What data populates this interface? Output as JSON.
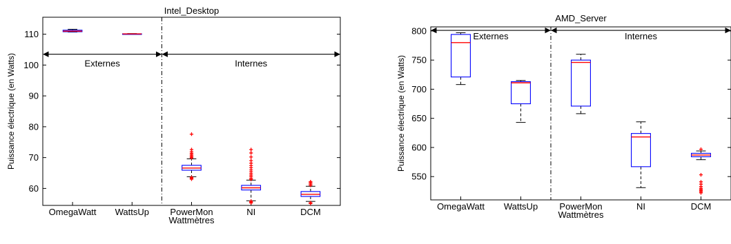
{
  "chart_data": [
    {
      "type": "box",
      "title": "Intel_Desktop",
      "xlabel": "",
      "x_sublabel": "Wattmètres",
      "ylabel": "Puissance électrique (en Watts)",
      "ylim": [
        54.5,
        115.5
      ],
      "yticks": [
        60,
        70,
        80,
        90,
        100,
        110
      ],
      "categories": [
        "OmegaWatt",
        "WattsUp",
        "PowerMon",
        "NI",
        "DCM"
      ],
      "boxes": [
        {
          "label": "OmegaWatt",
          "whisker_low": 110.7,
          "q1": 110.8,
          "median": 111.0,
          "q3": 111.3,
          "whisker_high": 111.6,
          "outliers": []
        },
        {
          "label": "WattsUp",
          "whisker_low": 110.0,
          "q1": 110.0,
          "median": 110.1,
          "q3": 110.15,
          "whisker_high": 110.2,
          "outliers": []
        },
        {
          "label": "PowerMon",
          "whisker_low": 63.8,
          "q1": 65.9,
          "median": 66.6,
          "q3": 67.5,
          "whisker_high": 69.6,
          "outliers": [
            63.0,
            63.3,
            63.6,
            69.9,
            70.2,
            70.6,
            71.0,
            71.4,
            71.9,
            72.6,
            77.6
          ]
        },
        {
          "label": "NI",
          "whisker_low": 56.0,
          "q1": 59.5,
          "median": 60.2,
          "q3": 61.0,
          "whisker_high": 62.7,
          "outliers": [
            55.3,
            55.6,
            55.9,
            62.9,
            63.3,
            63.8,
            64.3,
            64.8,
            65.4,
            66.0,
            66.7,
            67.4,
            68.2,
            69.0,
            70.2,
            71.5,
            72.6
          ]
        },
        {
          "label": "DCM",
          "whisker_low": 55.8,
          "q1": 57.4,
          "median": 58.1,
          "q3": 59.0,
          "whisker_high": 60.7,
          "outliers": [
            55.1,
            55.4,
            61.0,
            61.4,
            61.8,
            62.2
          ]
        }
      ],
      "separator_after": 2,
      "annotations": [
        {
          "text": "Externes",
          "y": 103.5,
          "from": "left",
          "to": "separator"
        },
        {
          "text": "Internes",
          "y": 103.5,
          "from": "separator",
          "to": "right"
        }
      ],
      "grid": false,
      "colors": {
        "box": "#0000ff",
        "median": "#ff0000",
        "outlier": "#ff0000",
        "whisker": "#000000"
      }
    },
    {
      "type": "box",
      "title": "AMD_Server",
      "xlabel": "",
      "x_sublabel": "Wattmètres",
      "ylabel": "Puissance électrique (en Watts)",
      "ylim": [
        510,
        807
      ],
      "yticks": [
        550,
        600,
        650,
        700,
        750,
        800
      ],
      "categories": [
        "OmegaWatt",
        "WattsUp",
        "PowerMon",
        "NI",
        "DCM"
      ],
      "boxes": [
        {
          "label": "OmegaWatt",
          "whisker_low": 708,
          "q1": 721,
          "median": 780,
          "q3": 794,
          "whisker_high": 797,
          "outliers": []
        },
        {
          "label": "WattsUp",
          "whisker_low": 643,
          "q1": 675,
          "median": 711,
          "q3": 713,
          "whisker_high": 715,
          "outliers": []
        },
        {
          "label": "PowerMon",
          "whisker_low": 658,
          "q1": 671,
          "median": 746,
          "q3": 750,
          "whisker_high": 760,
          "outliers": []
        },
        {
          "label": "NI",
          "whisker_low": 531,
          "q1": 567,
          "median": 618,
          "q3": 624,
          "whisker_high": 644,
          "outliers": []
        },
        {
          "label": "DCM",
          "whisker_low": 579,
          "q1": 584,
          "median": 587,
          "q3": 590,
          "whisker_high": 594,
          "outliers": [
            597,
            553,
            541,
            537,
            533,
            530,
            528,
            526,
            524,
            522
          ]
        }
      ],
      "separator_after": 2,
      "annotations": [
        {
          "text": "Externes",
          "y": 801,
          "from": "left",
          "to": "separator"
        },
        {
          "text": "Internes",
          "y": 801,
          "from": "separator",
          "to": "right"
        }
      ],
      "grid": false,
      "colors": {
        "box": "#0000ff",
        "median": "#ff0000",
        "outlier": "#ff0000",
        "whisker": "#000000"
      }
    }
  ]
}
